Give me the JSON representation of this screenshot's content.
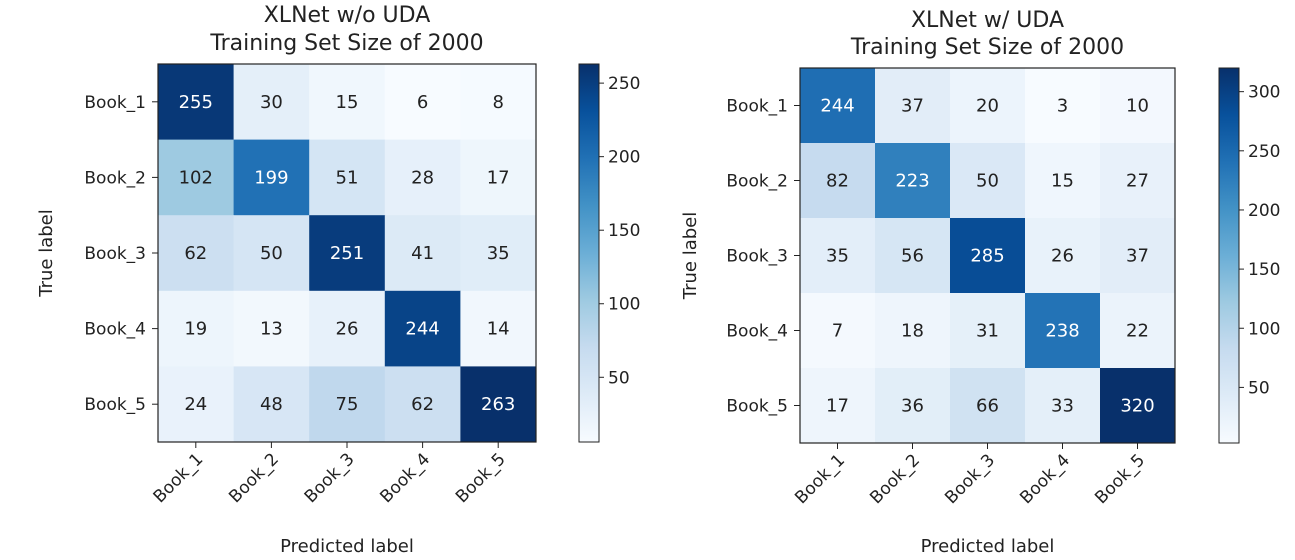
{
  "chart_data": [
    {
      "type": "heatmap",
      "title": [
        "XLNet w/o UDA",
        "Training Set Size of 2000"
      ],
      "xlabel": "Predicted label",
      "ylabel": "True label",
      "x_categories": [
        "Book_1",
        "Book_2",
        "Book_3",
        "Book_4",
        "Book_5"
      ],
      "y_categories": [
        "Book_1",
        "Book_2",
        "Book_3",
        "Book_4",
        "Book_5"
      ],
      "values": [
        [
          255,
          30,
          15,
          6,
          8
        ],
        [
          102,
          199,
          51,
          28,
          17
        ],
        [
          62,
          50,
          251,
          41,
          35
        ],
        [
          19,
          13,
          26,
          244,
          14
        ],
        [
          24,
          48,
          75,
          62,
          263
        ]
      ],
      "colormap": "Blues",
      "colorbar_range": [
        6,
        263
      ],
      "colorbar_ticks": [
        50,
        100,
        150,
        200,
        250
      ]
    },
    {
      "type": "heatmap",
      "title": [
        "XLNet w/ UDA",
        "Training Set Size of 2000"
      ],
      "xlabel": "Predicted label",
      "ylabel": "True label",
      "x_categories": [
        "Book_1",
        "Book_2",
        "Book_3",
        "Book_4",
        "Book_5"
      ],
      "y_categories": [
        "Book_1",
        "Book_2",
        "Book_3",
        "Book_4",
        "Book_5"
      ],
      "values": [
        [
          244,
          37,
          20,
          3,
          10
        ],
        [
          82,
          223,
          50,
          15,
          27
        ],
        [
          35,
          56,
          285,
          26,
          37
        ],
        [
          7,
          18,
          31,
          238,
          22
        ],
        [
          17,
          36,
          66,
          33,
          320
        ]
      ],
      "colormap": "Blues",
      "colorbar_range": [
        3,
        320
      ],
      "colorbar_ticks": [
        50,
        100,
        150,
        200,
        250,
        300
      ]
    }
  ],
  "colors": {
    "blues_low": "#f7fbff",
    "blues_high": "#08306b",
    "text_dark": "#222222",
    "text_light": "#ffffff"
  }
}
